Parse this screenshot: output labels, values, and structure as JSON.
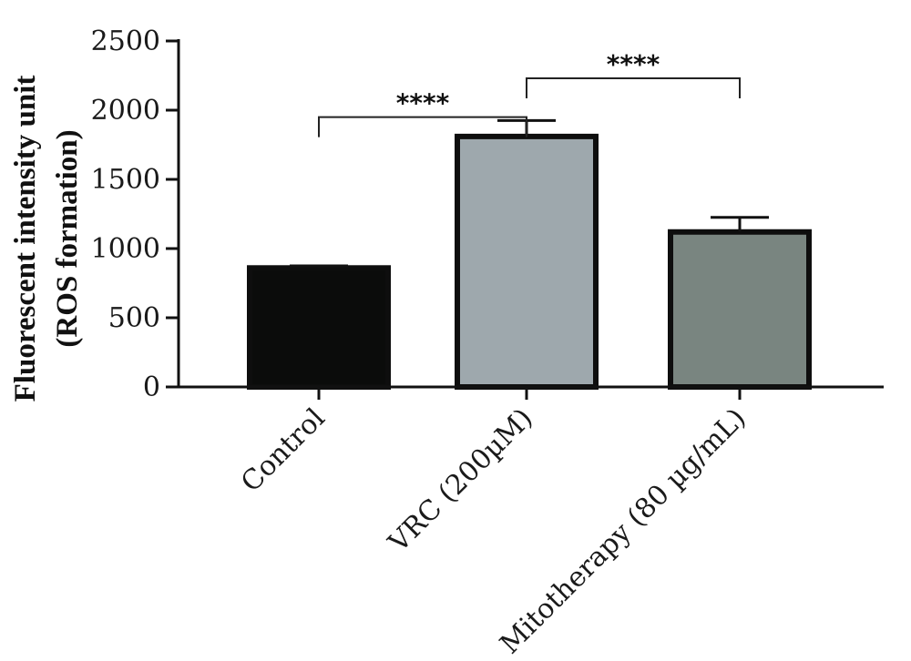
{
  "chart_data": {
    "type": "bar",
    "title": "",
    "xlabel": "",
    "ylabel_lines": [
      "Fluorescent intensity unit",
      "(ROS formation)"
    ],
    "categories": [
      "Control",
      "VRC (200µM)",
      "Mitotherapy (80 µg/mL)"
    ],
    "values": [
      860,
      1810,
      1120
    ],
    "errors": [
      15,
      115,
      105
    ],
    "bar_colors": [
      "#0b0c0b",
      "#9ea8ad",
      "#798580"
    ],
    "ylim": [
      0,
      2500
    ],
    "yticks": [
      0,
      500,
      1000,
      1500,
      2000,
      2500
    ],
    "grid": false,
    "significance": [
      {
        "from": 0,
        "to": 1,
        "label": "****",
        "level": 1950
      },
      {
        "from": 1,
        "to": 2,
        "label": "****",
        "level": 2230
      }
    ]
  }
}
